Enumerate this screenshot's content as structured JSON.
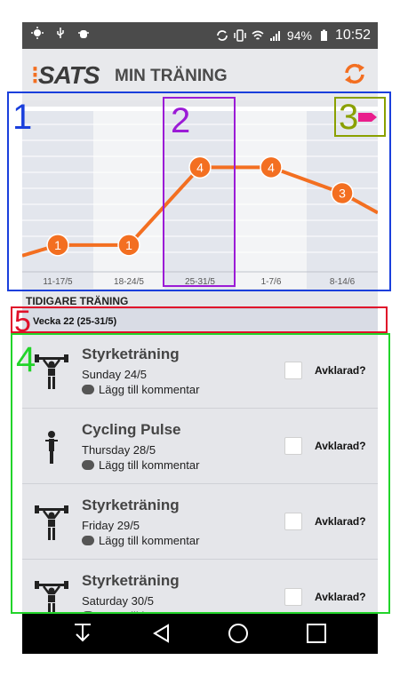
{
  "status_bar": {
    "battery": "94%",
    "time": "10:52"
  },
  "app": {
    "logo": "SATS",
    "title": "MIN TRÄNING"
  },
  "colors": {
    "accent": "#f36f21",
    "pink_tag": "#e91e8c"
  },
  "chart_data": {
    "type": "line",
    "categories": [
      "11-17/5",
      "18-24/5",
      "25-31/5",
      "1-7/6",
      "8-14/6"
    ],
    "values": [
      1,
      1,
      4,
      4,
      3
    ],
    "ylim": [
      0,
      6
    ],
    "grid": true
  },
  "history": {
    "section_title": "TIDIGARE TRÄNING",
    "week_label": "Vecka 22 (25-31/5)",
    "items": [
      {
        "name": "Styrketräning",
        "date": "Sunday 24/5",
        "comment": "Lägg till kommentar",
        "done_label": "Avklarad?",
        "icon": "weightlifting-icon"
      },
      {
        "name": "Cycling Pulse",
        "date": "Thursday 28/5",
        "comment": "Lägg till kommentar",
        "done_label": "Avklarad?",
        "icon": "cycling-person-icon"
      },
      {
        "name": "Styrketräning",
        "date": "Friday 29/5",
        "comment": "Lägg till kommentar",
        "done_label": "Avklarad?",
        "icon": "weightlifting-icon"
      },
      {
        "name": "Styrketräning",
        "date": "Saturday 30/5",
        "comment": "Lägg till kommentar",
        "done_label": "Avklarad?",
        "icon": "weightlifting-icon"
      }
    ]
  },
  "annotations": [
    {
      "label": "1",
      "color": "#1a3fdc"
    },
    {
      "label": "2",
      "color": "#9b1bd6"
    },
    {
      "label": "3",
      "color": "#8aa000"
    },
    {
      "label": "4",
      "color": "#22d42a"
    },
    {
      "label": "5",
      "color": "#e0102a"
    }
  ]
}
